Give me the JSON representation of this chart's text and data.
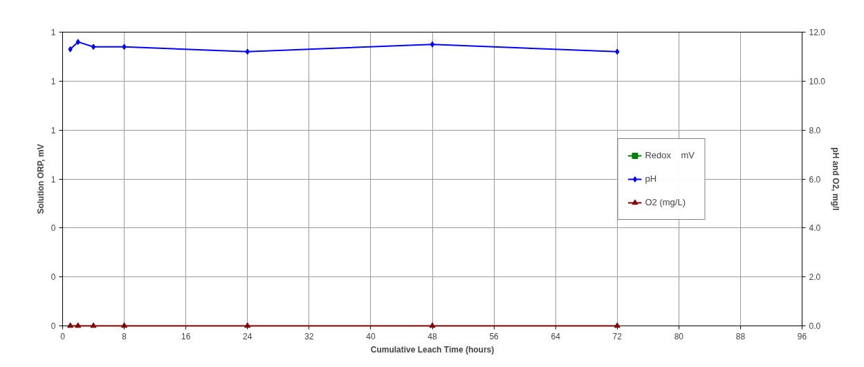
{
  "chart_data": {
    "type": "line",
    "xlabel": "Cumulative Leach Time (hours)",
    "ylabel": "Solution ORP, mV",
    "y2label": "pH and O2, mg/l",
    "x": [
      1,
      2,
      4,
      8,
      24,
      48,
      72
    ],
    "xlim": [
      0,
      96
    ],
    "xticks": [
      0,
      8,
      16,
      24,
      32,
      40,
      48,
      56,
      64,
      72,
      80,
      88,
      96
    ],
    "ylim": [
      0,
      1.2
    ],
    "yticks": [
      {
        "value": 0,
        "label": "0"
      },
      {
        "value": 0.2,
        "label": "0"
      },
      {
        "value": 0.4,
        "label": "0"
      },
      {
        "value": 0.6,
        "label": "1"
      },
      {
        "value": 0.8,
        "label": "1"
      },
      {
        "value": 1.0,
        "label": "1"
      },
      {
        "value": 1.2,
        "label": "1"
      }
    ],
    "y2lim": [
      0,
      12
    ],
    "y2ticks": [
      {
        "value": 0,
        "label": "0.0"
      },
      {
        "value": 2,
        "label": "2.0"
      },
      {
        "value": 4,
        "label": "4.0"
      },
      {
        "value": 6,
        "label": "6.0"
      },
      {
        "value": 8,
        "label": "8.0"
      },
      {
        "value": 10,
        "label": "10.0"
      },
      {
        "value": 12,
        "label": "12.0"
      }
    ],
    "grid": true,
    "legend": "right",
    "line_style": "solid",
    "series": [
      {
        "name": "Redox    mV",
        "color": "#008000",
        "marker": "square",
        "values": [
          null,
          null,
          null,
          null,
          null,
          null,
          null
        ]
      },
      {
        "name": "pH",
        "color": "#0000ff",
        "marker": "diamond",
        "axis": "y2",
        "values": [
          11.3,
          11.6,
          11.4,
          11.4,
          11.2,
          11.5,
          11.2
        ]
      },
      {
        "name": "O2 (mg/L)",
        "color": "#800000",
        "marker": "triangle",
        "axis": "y2",
        "values": [
          0,
          0,
          0,
          0,
          0,
          0,
          0
        ]
      }
    ]
  }
}
